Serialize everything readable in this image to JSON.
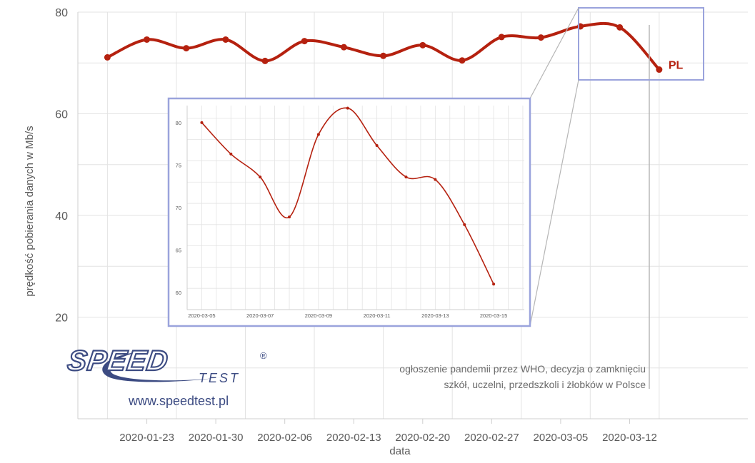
{
  "colors": {
    "series": "#b5210f",
    "grid": "#e3e3e3",
    "zoom_frame": "#9aa3dc",
    "logo": "#3c4b82"
  },
  "chart_data": [
    {
      "type": "line",
      "xlabel": "data",
      "ylabel": "prędkość pobierania danych w Mb/s",
      "ylim": [
        0,
        80
      ],
      "yticks": [
        "20",
        "40",
        "60",
        "80"
      ],
      "x_tick_labels": [
        "2020-01-23",
        "2020-01-30",
        "2020-02-06",
        "2020-02-13",
        "2020-02-20",
        "2020-02-27",
        "2020-03-05",
        "2020-03-12"
      ],
      "grid": true,
      "series": [
        {
          "name": "PL",
          "x": [
            "2020-01-19",
            "2020-01-23",
            "2020-01-27",
            "2020-01-31",
            "2020-02-04",
            "2020-02-08",
            "2020-02-12",
            "2020-02-16",
            "2020-02-20",
            "2020-02-24",
            "2020-02-28",
            "2020-03-03",
            "2020-03-07",
            "2020-03-11",
            "2020-03-15"
          ],
          "values": [
            71.1,
            74.6,
            72.9,
            74.6,
            70.4,
            74.3,
            73.1,
            71.4,
            73.5,
            70.5,
            75.1,
            75.0,
            77.2,
            77.0,
            68.7
          ]
        }
      ],
      "annotation": {
        "line1": "ogłoszenie pandemii przez WHO, decyzja o zamknięciu",
        "line2": "szkół, uczelni, przedszkoli i żłobków w Polsce"
      }
    },
    {
      "type": "line",
      "inset": true,
      "ylim": [
        58,
        82
      ],
      "yticks": [
        "60",
        "65",
        "70",
        "75",
        "80"
      ],
      "x_tick_labels": [
        "2020-03-05",
        "2020-03-07",
        "2020-03-09",
        "2020-03-11",
        "2020-03-13",
        "2020-03-15"
      ],
      "grid": true,
      "series": [
        {
          "x": [
            "2020-03-05",
            "2020-03-06",
            "2020-03-07",
            "2020-03-08",
            "2020-03-09",
            "2020-03-10",
            "2020-03-11",
            "2020-03-12",
            "2020-03-13",
            "2020-03-14",
            "2020-03-15"
          ],
          "values": [
            80.0,
            76.3,
            73.6,
            68.9,
            78.6,
            81.7,
            77.3,
            73.6,
            73.3,
            68.0,
            61.0
          ]
        }
      ]
    }
  ],
  "logo": {
    "word1": "SPEED",
    "word2": "TEST",
    "registered": "®",
    "url": "www.speedtest.pl"
  }
}
